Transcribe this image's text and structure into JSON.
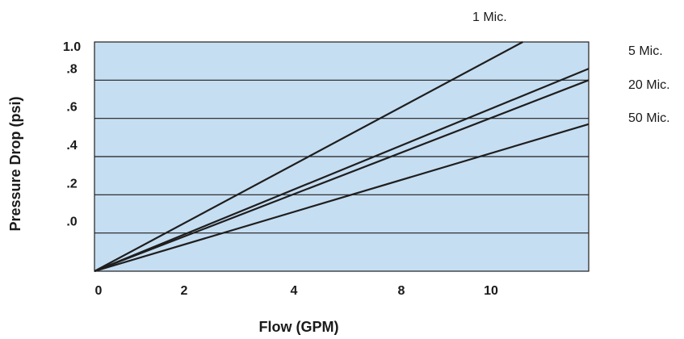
{
  "chart_data": {
    "type": "line",
    "title": "",
    "xlabel": "Flow (GPM)",
    "ylabel": "Pressure Drop (psi)",
    "x_tick_labels": [
      "0",
      "2",
      "4",
      "8",
      "10"
    ],
    "y_tick_labels": [
      ".0",
      ".2",
      ".4",
      ".6",
      ".8",
      "1.0"
    ],
    "grid": "horizontal",
    "colors": {
      "plot_bg": "#c6def2",
      "line": "#1e1e1e",
      "grid": "#1e1e1e"
    },
    "series": [
      {
        "name": "1 Mic.",
        "points": [
          [
            0,
            -0.2
          ],
          [
            10.4,
            1.0
          ]
        ]
      },
      {
        "name": "5 Mic.",
        "points": [
          [
            0,
            -0.2
          ],
          [
            12.0,
            0.86
          ]
        ]
      },
      {
        "name": "20 Mic.",
        "points": [
          [
            0,
            -0.2
          ],
          [
            12.0,
            0.8
          ]
        ]
      },
      {
        "name": "50 Mic.",
        "points": [
          [
            0,
            -0.2
          ],
          [
            12.0,
            0.57
          ]
        ]
      }
    ]
  }
}
